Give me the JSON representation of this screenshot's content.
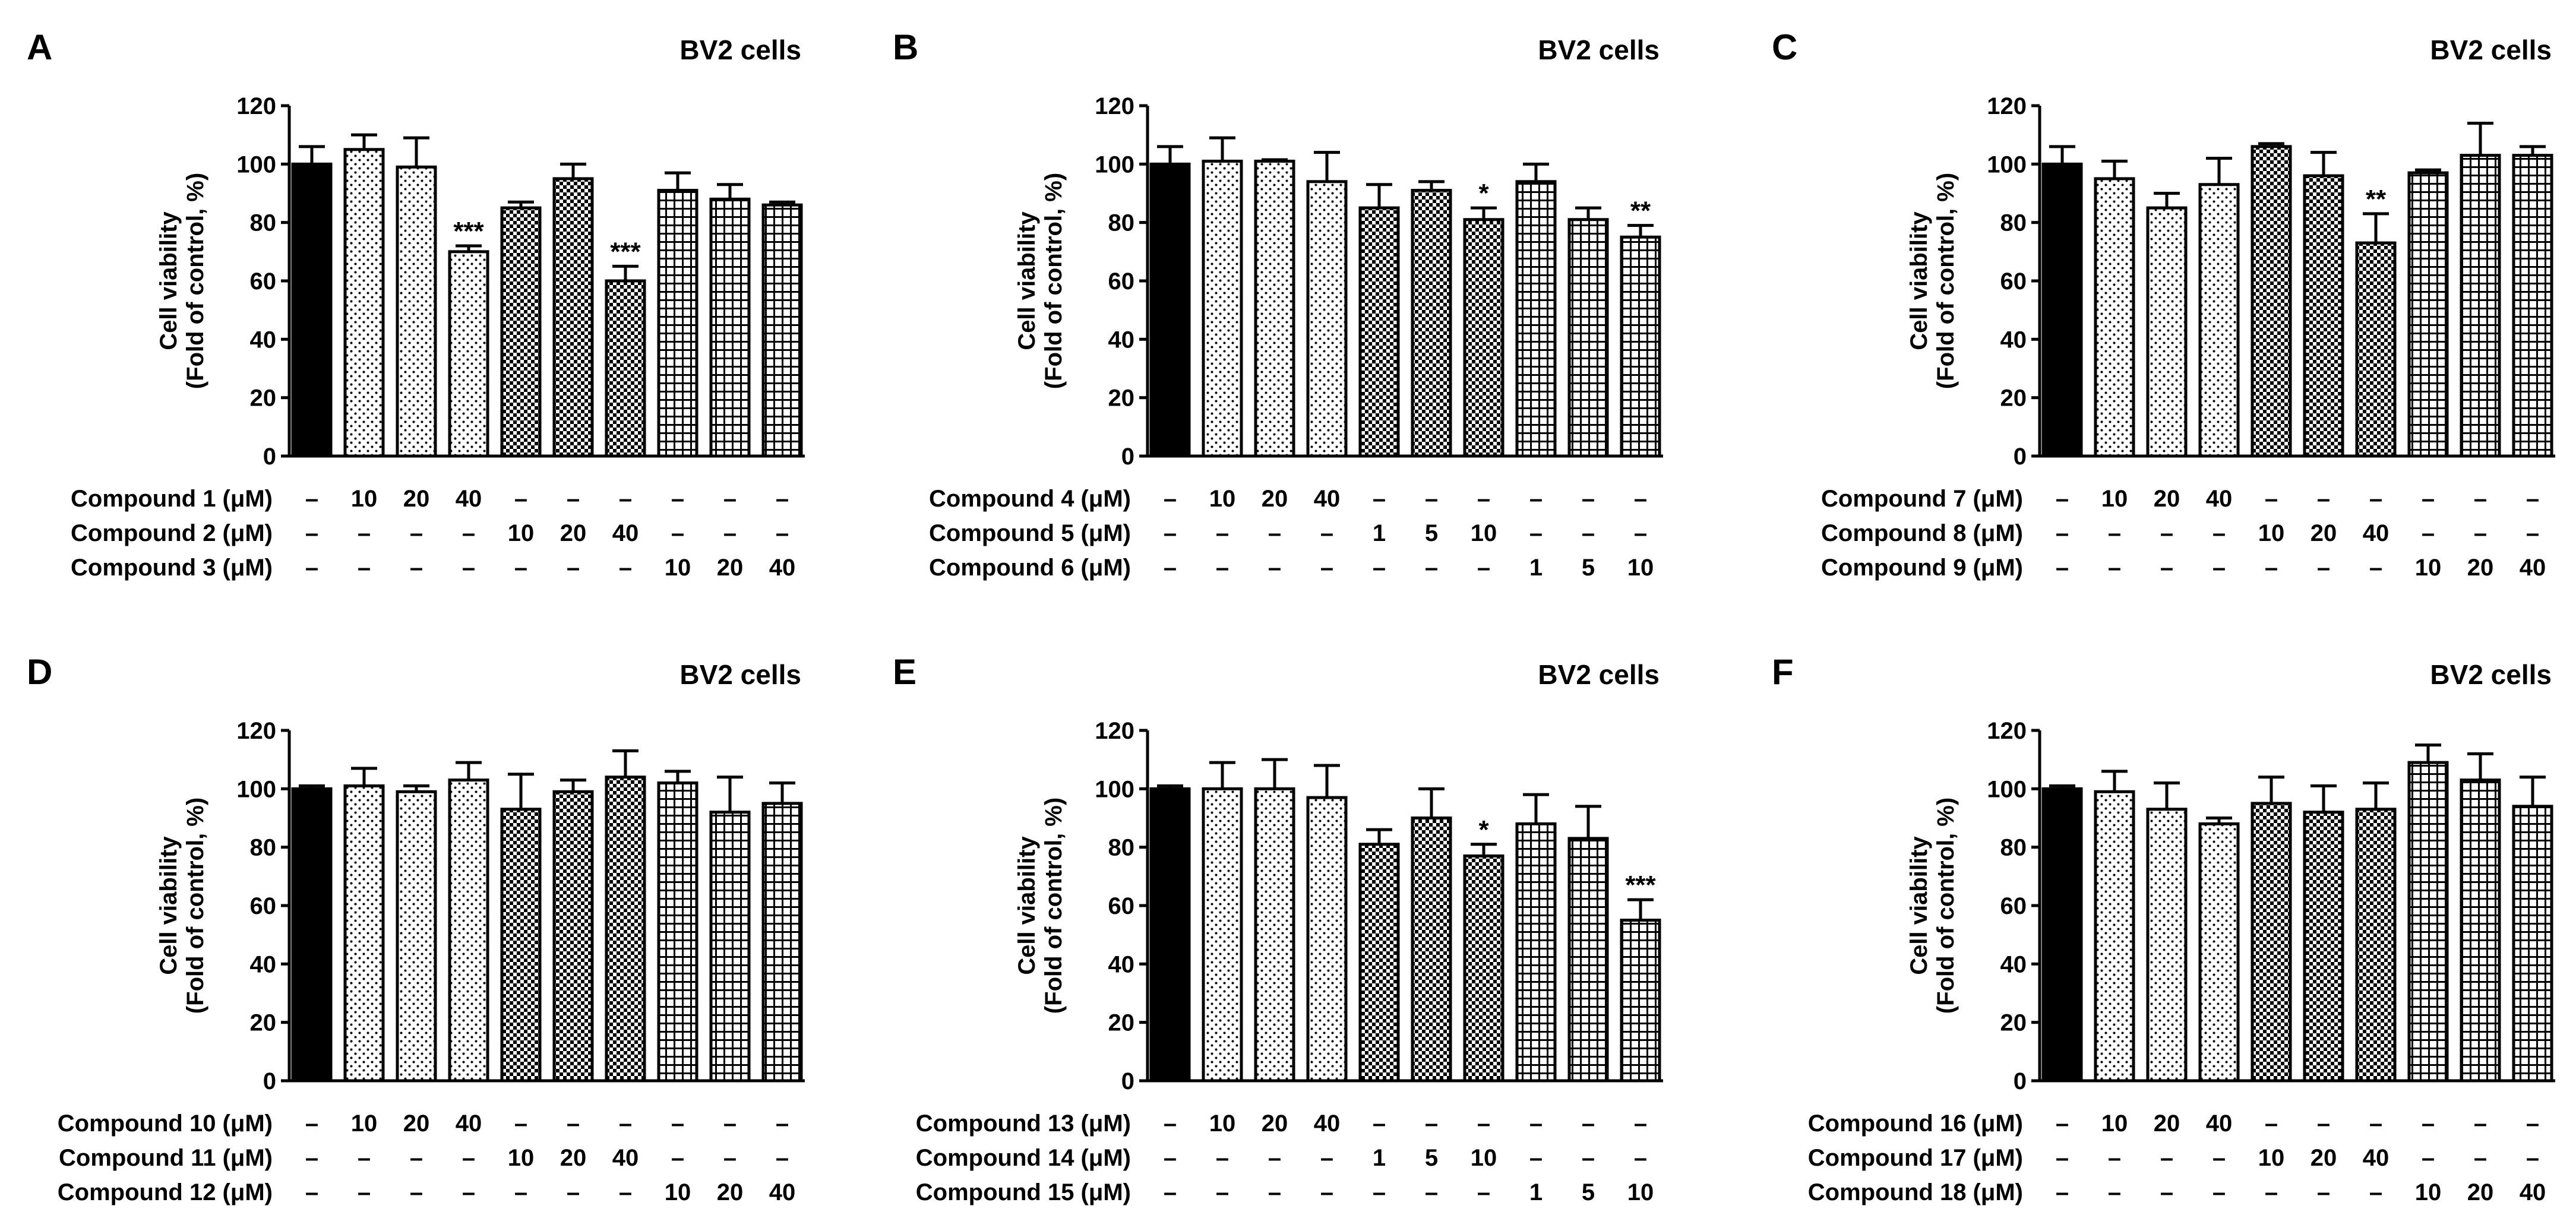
{
  "figure": {
    "domain": "Chart"
  },
  "chart_data": [
    {
      "type": "bar",
      "panel": "A",
      "title": "BV2 cells",
      "ylabel": "Cell viability",
      "ylabel2": "(Fold of control, %)",
      "ylim": [
        0,
        120
      ],
      "yticks": [
        "0",
        "20",
        "40",
        "60",
        "80",
        "100",
        "120"
      ],
      "rows": [
        {
          "label": "Compound 1 (μM)",
          "cells": [
            "–",
            "10",
            "20",
            "40",
            "–",
            "–",
            "–",
            "–",
            "–",
            "–"
          ]
        },
        {
          "label": "Compound 2 (μM)",
          "cells": [
            "–",
            "–",
            "–",
            "–",
            "10",
            "20",
            "40",
            "–",
            "–",
            "–"
          ]
        },
        {
          "label": "Compound 3 (μM)",
          "cells": [
            "–",
            "–",
            "–",
            "–",
            "–",
            "–",
            "–",
            "10",
            "20",
            "40"
          ]
        }
      ],
      "values": [
        100,
        105,
        99,
        70,
        85,
        95,
        60,
        91,
        88,
        86
      ],
      "errors": [
        6,
        5,
        10,
        2,
        2,
        5,
        5,
        6,
        5,
        1
      ],
      "patterns": [
        "solid",
        "dots",
        "dots",
        "dots",
        "check",
        "check",
        "check",
        "grid",
        "grid",
        "grid"
      ],
      "significance": [
        "",
        "",
        "",
        "***",
        "",
        "",
        "***",
        "",
        "",
        ""
      ]
    },
    {
      "type": "bar",
      "panel": "B",
      "title": "BV2 cells",
      "ylabel": "Cell viability",
      "ylabel2": "(Fold of control, %)",
      "ylim": [
        0,
        120
      ],
      "yticks": [
        "0",
        "20",
        "40",
        "60",
        "80",
        "100",
        "120"
      ],
      "rows": [
        {
          "label": "Compound 4 (μM)",
          "cells": [
            "–",
            "10",
            "20",
            "40",
            "–",
            "–",
            "–",
            "–",
            "–",
            "–"
          ]
        },
        {
          "label": "Compound 5 (μM)",
          "cells": [
            "–",
            "–",
            "–",
            "–",
            "1",
            "5",
            "10",
            "–",
            "–",
            "–"
          ]
        },
        {
          "label": "Compound 6 (μM)",
          "cells": [
            "–",
            "–",
            "–",
            "–",
            "–",
            "–",
            "–",
            "1",
            "5",
            "10"
          ]
        }
      ],
      "values": [
        100,
        101,
        101,
        94,
        85,
        91,
        81,
        94,
        81,
        75
      ],
      "errors": [
        6,
        8,
        0.5,
        10,
        8,
        3,
        4,
        6,
        4,
        4
      ],
      "patterns": [
        "solid",
        "dots",
        "dots",
        "dots",
        "check",
        "check",
        "check",
        "grid",
        "grid",
        "grid"
      ],
      "significance": [
        "",
        "",
        "",
        "",
        "",
        "",
        "*",
        "",
        "",
        "**"
      ]
    },
    {
      "type": "bar",
      "panel": "C",
      "title": "BV2 cells",
      "ylabel": "Cell viability",
      "ylabel2": "(Fold of control, %)",
      "ylim": [
        0,
        120
      ],
      "yticks": [
        "0",
        "20",
        "40",
        "60",
        "80",
        "100",
        "120"
      ],
      "rows": [
        {
          "label": "Compound 7 (μM)",
          "cells": [
            "–",
            "10",
            "20",
            "40",
            "–",
            "–",
            "–",
            "–",
            "–",
            "–"
          ]
        },
        {
          "label": "Compound 8 (μM)",
          "cells": [
            "–",
            "–",
            "–",
            "–",
            "10",
            "20",
            "40",
            "–",
            "–",
            "–"
          ]
        },
        {
          "label": "Compound 9 (μM)",
          "cells": [
            "–",
            "–",
            "–",
            "–",
            "–",
            "–",
            "–",
            "10",
            "20",
            "40"
          ]
        }
      ],
      "values": [
        100,
        95,
        85,
        93,
        106,
        96,
        73,
        97,
        103,
        103
      ],
      "errors": [
        6,
        6,
        5,
        9,
        1,
        8,
        10,
        1,
        11,
        3
      ],
      "patterns": [
        "solid",
        "dots",
        "dots",
        "dots",
        "check",
        "check",
        "check",
        "grid",
        "grid",
        "grid"
      ],
      "significance": [
        "",
        "",
        "",
        "",
        "",
        "",
        "**",
        "",
        "",
        ""
      ]
    },
    {
      "type": "bar",
      "panel": "D",
      "title": "BV2 cells",
      "ylabel": "Cell viability",
      "ylabel2": "(Fold of control, %)",
      "ylim": [
        0,
        120
      ],
      "yticks": [
        "0",
        "20",
        "40",
        "60",
        "80",
        "100",
        "120"
      ],
      "rows": [
        {
          "label": "Compound 10 (μM)",
          "cells": [
            "–",
            "10",
            "20",
            "40",
            "–",
            "–",
            "–",
            "–",
            "–",
            "–"
          ]
        },
        {
          "label": "Compound 11 (μM)",
          "cells": [
            "–",
            "–",
            "–",
            "–",
            "10",
            "20",
            "40",
            "–",
            "–",
            "–"
          ]
        },
        {
          "label": "Compound 12 (μM)",
          "cells": [
            "–",
            "–",
            "–",
            "–",
            "–",
            "–",
            "–",
            "10",
            "20",
            "40"
          ]
        }
      ],
      "values": [
        100,
        101,
        99,
        103,
        93,
        99,
        104,
        102,
        92,
        95
      ],
      "errors": [
        1,
        6,
        2,
        6,
        12,
        4,
        9,
        4,
        12,
        7
      ],
      "patterns": [
        "solid",
        "dots",
        "dots",
        "dots",
        "check",
        "check",
        "check",
        "grid",
        "grid",
        "grid"
      ],
      "significance": [
        "",
        "",
        "",
        "",
        "",
        "",
        "",
        "",
        "",
        ""
      ]
    },
    {
      "type": "bar",
      "panel": "E",
      "title": "BV2 cells",
      "ylabel": "Cell viability",
      "ylabel2": "(Fold of control, %)",
      "ylim": [
        0,
        120
      ],
      "yticks": [
        "0",
        "20",
        "40",
        "60",
        "80",
        "100",
        "120"
      ],
      "rows": [
        {
          "label": "Compound 13 (μM)",
          "cells": [
            "–",
            "10",
            "20",
            "40",
            "–",
            "–",
            "–",
            "–",
            "–",
            "–"
          ]
        },
        {
          "label": "Compound 14 (μM)",
          "cells": [
            "–",
            "–",
            "–",
            "–",
            "1",
            "5",
            "10",
            "–",
            "–",
            "–"
          ]
        },
        {
          "label": "Compound 15 (μM)",
          "cells": [
            "–",
            "–",
            "–",
            "–",
            "–",
            "–",
            "–",
            "1",
            "5",
            "10"
          ]
        }
      ],
      "values": [
        100,
        100,
        100,
        97,
        81,
        90,
        77,
        88,
        83,
        55
      ],
      "errors": [
        1,
        9,
        10,
        11,
        5,
        10,
        4,
        10,
        11,
        7
      ],
      "patterns": [
        "solid",
        "dots",
        "dots",
        "dots",
        "check",
        "check",
        "check",
        "grid",
        "grid",
        "grid"
      ],
      "significance": [
        "",
        "",
        "",
        "",
        "",
        "",
        "*",
        "",
        "",
        "***"
      ]
    },
    {
      "type": "bar",
      "panel": "F",
      "title": "BV2 cells",
      "ylabel": "Cell viability",
      "ylabel2": "(Fold of control, %)",
      "ylim": [
        0,
        120
      ],
      "yticks": [
        "0",
        "20",
        "40",
        "60",
        "80",
        "100",
        "120"
      ],
      "rows": [
        {
          "label": "Compound 16 (μM)",
          "cells": [
            "–",
            "10",
            "20",
            "40",
            "–",
            "–",
            "–",
            "–",
            "–",
            "–"
          ]
        },
        {
          "label": "Compound 17 (μM)",
          "cells": [
            "–",
            "–",
            "–",
            "–",
            "10",
            "20",
            "40",
            "–",
            "–",
            "–"
          ]
        },
        {
          "label": "Compound 18 (μM)",
          "cells": [
            "–",
            "–",
            "–",
            "–",
            "–",
            "–",
            "–",
            "10",
            "20",
            "40"
          ]
        }
      ],
      "values": [
        100,
        99,
        93,
        88,
        95,
        92,
        93,
        109,
        103,
        94
      ],
      "errors": [
        1,
        7,
        9,
        2,
        9,
        9,
        9,
        6,
        9,
        10
      ],
      "patterns": [
        "solid",
        "dots",
        "dots",
        "dots",
        "check",
        "check",
        "check",
        "grid",
        "grid",
        "grid"
      ],
      "significance": [
        "",
        "",
        "",
        "",
        "",
        "",
        "",
        "",
        "",
        ""
      ]
    }
  ]
}
